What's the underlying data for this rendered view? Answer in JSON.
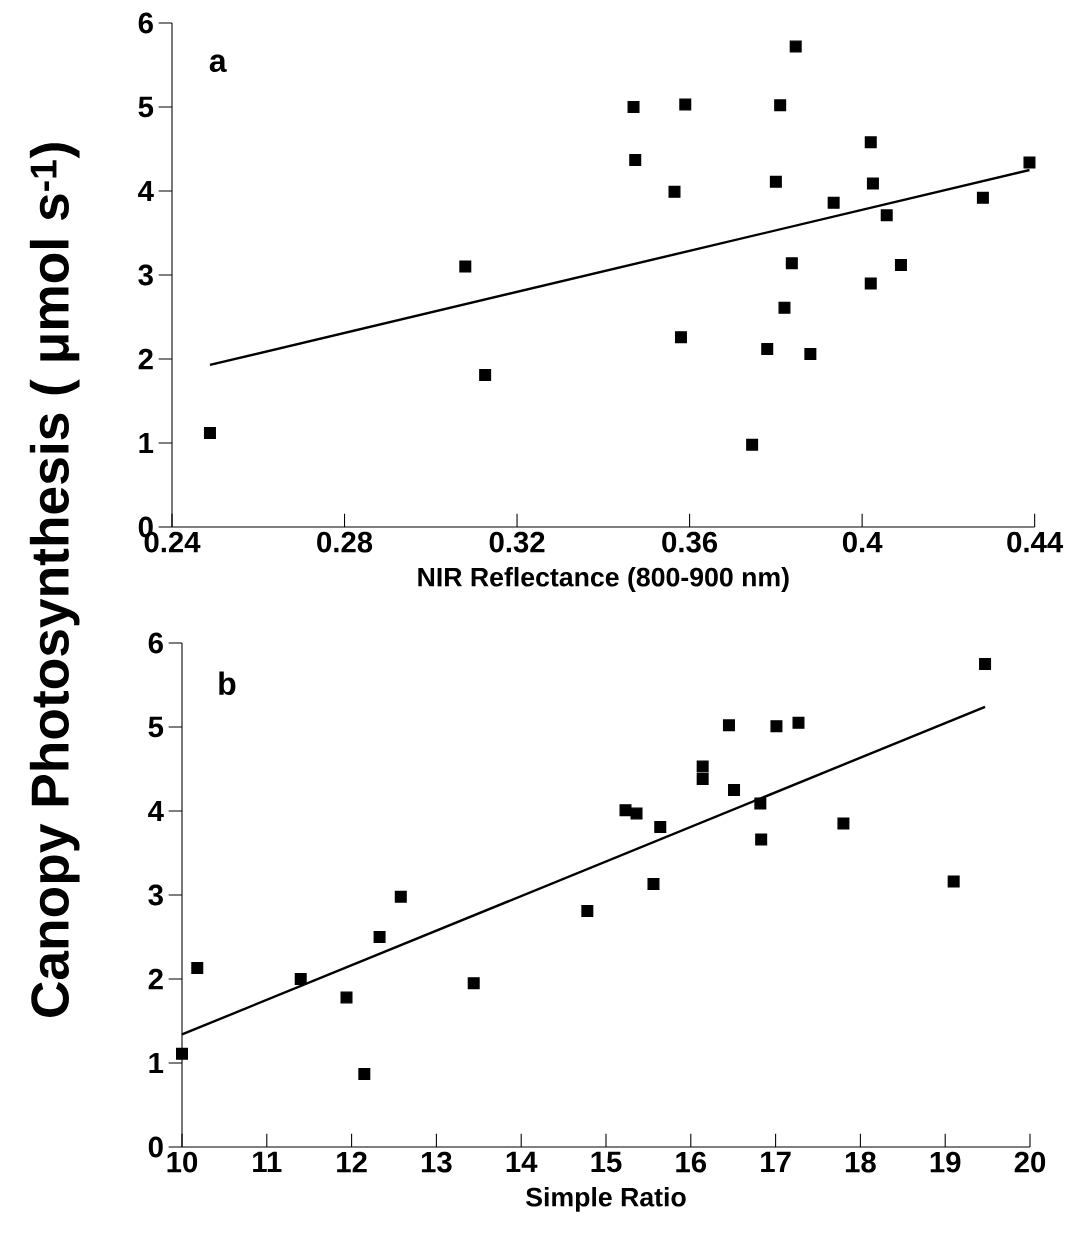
{
  "chart_data": [
    {
      "type": "scatter",
      "xlabel": "NIR Reflectance (800-900 nm)",
      "ylabel": "Canopy Photosynthesis ( μmol s$^{-1}$)",
      "annotations": [
        "a"
      ],
      "xlim": [
        0.24,
        0.44
      ],
      "ylim": [
        0,
        6
      ],
      "xticks": [
        0.24,
        0.28,
        0.32,
        0.36,
        0.4,
        0.44
      ],
      "yticks": [
        0,
        1,
        2,
        3,
        4,
        5,
        6
      ],
      "series": [
        {
          "marker": "square",
          "color": "#000000",
          "x": [
            0.2488,
            0.308,
            0.3126,
            0.347,
            0.3474,
            0.3565,
            0.358,
            0.359,
            0.3745,
            0.378,
            0.38,
            0.381,
            0.382,
            0.3837,
            0.3846,
            0.388,
            0.3934,
            0.402,
            0.402,
            0.4025,
            0.4057,
            0.409,
            0.428,
            0.4388
          ],
          "values": [
            1.12,
            3.1,
            1.81,
            5.0,
            4.37,
            3.99,
            2.26,
            5.03,
            0.98,
            2.12,
            4.11,
            5.02,
            2.61,
            3.14,
            5.72,
            2.06,
            3.86,
            2.9,
            4.58,
            4.09,
            3.71,
            3.12,
            3.92,
            4.34
          ]
        },
        {
          "type": "line",
          "color": "#000000",
          "x": [
            0.2488,
            0.4388
          ],
          "values": [
            1.93,
            4.25
          ]
        }
      ]
    },
    {
      "type": "scatter",
      "xlabel": "Simple Ratio",
      "annotations": [
        "b"
      ],
      "xlim": [
        10,
        20
      ],
      "ylim": [
        0,
        6
      ],
      "xticks": [
        10,
        11,
        12,
        13,
        14,
        15,
        16,
        17,
        18,
        19,
        20
      ],
      "yticks": [
        0,
        1,
        2,
        3,
        4,
        5,
        6
      ],
      "series": [
        {
          "marker": "square",
          "color": "#000000",
          "x": [
            10.0,
            10.18,
            11.4,
            11.94,
            12.15,
            12.33,
            12.58,
            13.44,
            14.78,
            15.23,
            15.36,
            15.56,
            15.64,
            16.14,
            16.14,
            16.45,
            16.51,
            16.82,
            16.83,
            17.01,
            17.27,
            17.8,
            19.1,
            19.47
          ],
          "values": [
            1.11,
            2.13,
            2.0,
            1.78,
            0.87,
            2.5,
            2.98,
            1.95,
            2.81,
            4.01,
            3.97,
            3.13,
            3.81,
            4.53,
            4.38,
            5.02,
            4.25,
            4.09,
            3.66,
            5.01,
            5.05,
            3.85,
            3.16,
            5.75
          ]
        },
        {
          "type": "line",
          "color": "#000000",
          "x": [
            10.0,
            19.47
          ],
          "values": [
            1.34,
            5.24
          ]
        }
      ]
    }
  ]
}
